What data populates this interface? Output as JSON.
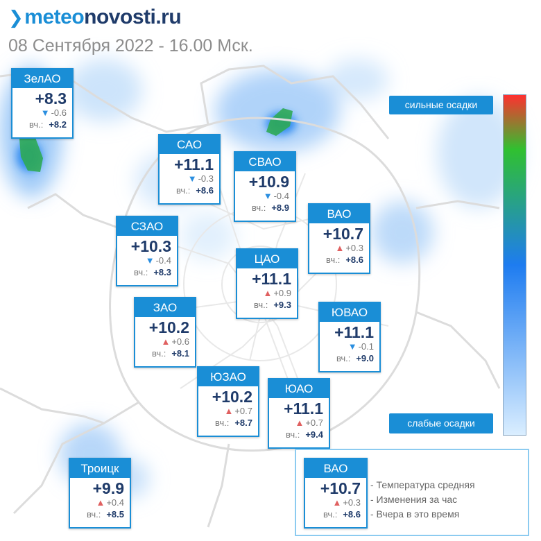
{
  "brand": {
    "prefix": "meteo",
    "suffix": "novosti.ru"
  },
  "datetime": "08 Сентября 2022 - 16.00 Мск.",
  "scale": {
    "high_label": "сильные осадки",
    "low_label": "слабые осадки",
    "gradient": [
      "#ff3030",
      "#30c030",
      "#1e7cf0",
      "#daeeff"
    ]
  },
  "colors": {
    "accent": "#1a8ed6",
    "temp": "#1f3b6a",
    "up": "#e06060",
    "down": "#2a8ee0"
  },
  "yesterday_label": "вч.:",
  "districts": [
    {
      "name": "ЗелАО",
      "temp": "+8.3",
      "dir": "down",
      "change": "-0.6",
      "yesterday": "+8.2"
    },
    {
      "name": "САО",
      "temp": "+11.1",
      "dir": "down",
      "change": "-0.3",
      "yesterday": "+8.6"
    },
    {
      "name": "СВАО",
      "temp": "+10.9",
      "dir": "down",
      "change": "-0.4",
      "yesterday": "+8.9"
    },
    {
      "name": "ВАО",
      "temp": "+10.7",
      "dir": "up",
      "change": "+0.3",
      "yesterday": "+8.6"
    },
    {
      "name": "СЗАО",
      "temp": "+10.3",
      "dir": "down",
      "change": "-0.4",
      "yesterday": "+8.3"
    },
    {
      "name": "ЦАО",
      "temp": "+11.1",
      "dir": "up",
      "change": "+0.9",
      "yesterday": "+9.3"
    },
    {
      "name": "ЗАО",
      "temp": "+10.2",
      "dir": "up",
      "change": "+0.6",
      "yesterday": "+8.1"
    },
    {
      "name": "ЮВАО",
      "temp": "+11.1",
      "dir": "down",
      "change": "-0.1",
      "yesterday": "+9.0"
    },
    {
      "name": "ЮЗАО",
      "temp": "+10.2",
      "dir": "up",
      "change": "+0.7",
      "yesterday": "+8.7"
    },
    {
      "name": "ЮАО",
      "temp": "+11.1",
      "dir": "up",
      "change": "+0.7",
      "yesterday": "+9.4"
    },
    {
      "name": "Троицк",
      "temp": "+9.9",
      "dir": "up",
      "change": "+0.4",
      "yesterday": "+8.5"
    }
  ],
  "legend": {
    "sample": {
      "name": "ВАО",
      "temp": "+10.7",
      "dir": "up",
      "change": "+0.3",
      "yesterday": "+8.6"
    },
    "lines": [
      "- Температура средняя",
      "- Изменения за час",
      "- Вчера в это время"
    ]
  }
}
